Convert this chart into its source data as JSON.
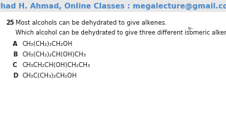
{
  "header": "Fahad H. Ahmad, Online Classes : megalecture@gmail.com",
  "header_color": "#4a86c8",
  "header_bg": "#e8e8e8",
  "bg_color": "#f5f3ef",
  "content_bg": "#ffffff",
  "question_number": "25",
  "question_stem": "Most alcohols can be dehydrated to give alkenes.",
  "question_body": "Which alcohol can be dehydrated to give three different isomeric alkenes?",
  "options": [
    {
      "label": "A",
      "text": "CH₃(CH₂)₃CH₂OH"
    },
    {
      "label": "B",
      "text": "CH₃(CH₂)₂CH(OH)CH₃"
    },
    {
      "label": "C",
      "text": "CH₃CH₂CH(OH)CH₂CH₃"
    },
    {
      "label": "D",
      "text": "CH₃C(CH₃)₂CH₂OH"
    }
  ],
  "text_color": "#1a1a1a",
  "label_color": "#1a1a1a",
  "font_size_header": 7.5,
  "font_size_stem": 6.2,
  "font_size_body": 6.0,
  "font_size_options": 6.2
}
